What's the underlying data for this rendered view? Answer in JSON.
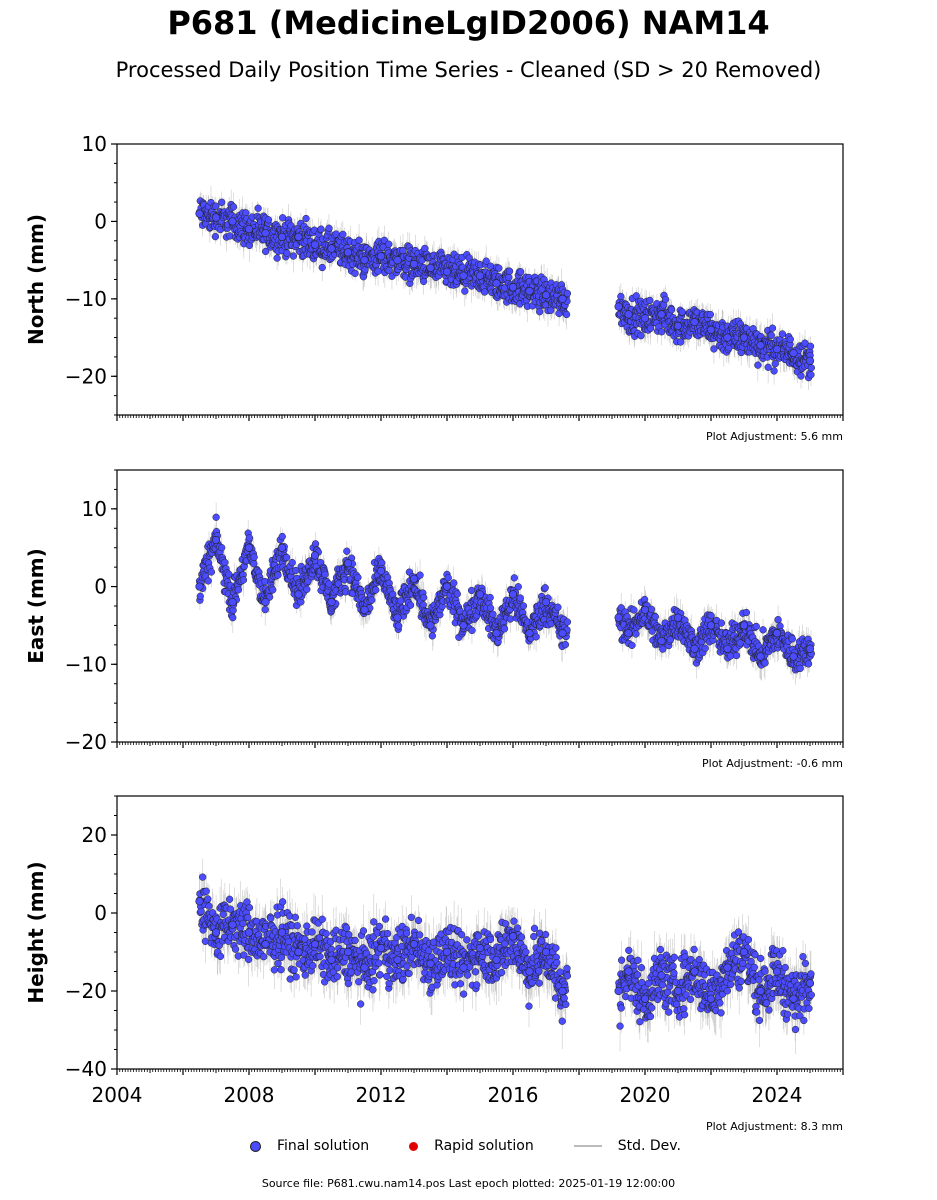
{
  "title": "P681 (MedicineLgID2006) NAM14",
  "subtitle": "Processed Daily Position Time Series - Cleaned (SD > 20 Removed)",
  "legend": {
    "final": "Final solution",
    "rapid": "Rapid solution",
    "std": "Std. Dev."
  },
  "source": "Source file: P681.cwu.nam14.pos  Last epoch plotted: 2025-01-19 12:00:00",
  "colors": {
    "final": "#4b4bff",
    "rapid": "#e00000",
    "std": "#bbbbbb",
    "marker_edge": "#222222"
  },
  "chart_data": [
    {
      "type": "scatter",
      "ylabel": "North (mm)",
      "adjustment": "Plot Adjustment: 5.6 mm",
      "xlim": [
        2004,
        2026
      ],
      "ylim": [
        -25,
        10
      ],
      "yticks": [
        -20,
        -10,
        0,
        10
      ],
      "xticks": [
        2004,
        2008,
        2012,
        2016,
        2020,
        2024
      ],
      "show_xticklabels": false,
      "series": [
        {
          "name": "Final solution",
          "x": [
            2006.5,
            2007.0,
            2007.5,
            2008.0,
            2008.5,
            2009.0,
            2009.5,
            2010.0,
            2010.5,
            2011.0,
            2011.5,
            2012.0,
            2012.5,
            2013.0,
            2013.5,
            2014.0,
            2014.5,
            2015.0,
            2015.5,
            2016.0,
            2016.5,
            2017.0,
            2017.5,
            2019.2,
            2019.5,
            2020.0,
            2020.5,
            2021.0,
            2021.5,
            2022.0,
            2022.5,
            2023.0,
            2023.5,
            2024.0,
            2024.5,
            2025.0
          ],
          "y": [
            1,
            0.5,
            0,
            -1,
            -1.5,
            -2,
            -2,
            -3,
            -3.5,
            -4,
            -5,
            -4.5,
            -5,
            -5.5,
            -6,
            -6.5,
            -7,
            -7,
            -8,
            -8.5,
            -9,
            -9.5,
            -10,
            -11,
            -12,
            -12.5,
            -12,
            -13.5,
            -13,
            -14,
            -15,
            -15,
            -16,
            -16.5,
            -17,
            -18
          ]
        }
      ]
    },
    {
      "type": "scatter",
      "ylabel": "East (mm)",
      "adjustment": "Plot Adjustment: -0.6 mm",
      "xlim": [
        2004,
        2026
      ],
      "ylim": [
        -20,
        15
      ],
      "yticks": [
        -20,
        -10,
        0,
        10
      ],
      "xticks": [
        2004,
        2008,
        2012,
        2016,
        2020,
        2024
      ],
      "show_xticklabels": false,
      "series": [
        {
          "name": "Final solution",
          "x": [
            2006.5,
            2007.0,
            2007.5,
            2008.0,
            2008.5,
            2009.0,
            2009.5,
            2010.0,
            2010.5,
            2011.0,
            2011.5,
            2012.0,
            2012.5,
            2013.0,
            2013.5,
            2014.0,
            2014.5,
            2015.0,
            2015.5,
            2016.0,
            2016.5,
            2017.0,
            2017.5,
            2019.2,
            2019.5,
            2020.0,
            2020.5,
            2021.0,
            2021.5,
            2022.0,
            2022.5,
            2023.0,
            2023.5,
            2024.0,
            2024.5,
            2025.0
          ],
          "y": [
            0,
            6,
            -2,
            5,
            -2,
            5,
            -1,
            4,
            -2,
            3,
            -3,
            2,
            -4,
            1,
            -5,
            0,
            -5,
            -1,
            -6,
            -1,
            -6,
            -2,
            -6,
            -4,
            -6,
            -3,
            -7,
            -4,
            -8,
            -5,
            -8,
            -5,
            -9,
            -6,
            -9,
            -8
          ]
        }
      ]
    },
    {
      "type": "scatter",
      "ylabel": "Height (mm)",
      "adjustment": "Plot Adjustment: 8.3 mm",
      "xlim": [
        2004,
        2026
      ],
      "ylim": [
        -40,
        30
      ],
      "yticks": [
        -40,
        -20,
        0,
        20
      ],
      "xticks": [
        2004,
        2008,
        2012,
        2016,
        2020,
        2024
      ],
      "xticklabels": [
        "2004",
        "2008",
        "2012",
        "2016",
        "2020",
        "2024"
      ],
      "show_xticklabels": true,
      "series": [
        {
          "name": "Final solution",
          "x": [
            2006.5,
            2007.0,
            2007.5,
            2008.0,
            2008.5,
            2009.0,
            2009.5,
            2010.0,
            2010.5,
            2011.0,
            2011.5,
            2012.0,
            2012.5,
            2013.0,
            2013.5,
            2014.0,
            2014.5,
            2015.0,
            2015.5,
            2016.0,
            2016.5,
            2017.0,
            2017.5,
            2019.2,
            2019.5,
            2020.0,
            2020.5,
            2021.0,
            2021.5,
            2022.0,
            2022.5,
            2023.0,
            2023.5,
            2024.0,
            2024.5,
            2025.0
          ],
          "y": [
            3,
            -5,
            -3,
            -5,
            -8,
            -5,
            -10,
            -8,
            -12,
            -10,
            -14,
            -9,
            -12,
            -8,
            -13,
            -10,
            -14,
            -9,
            -12,
            -6,
            -15,
            -10,
            -20,
            -20,
            -15,
            -22,
            -16,
            -20,
            -15,
            -22,
            -14,
            -10,
            -20,
            -15,
            -22,
            -18
          ]
        }
      ]
    }
  ]
}
